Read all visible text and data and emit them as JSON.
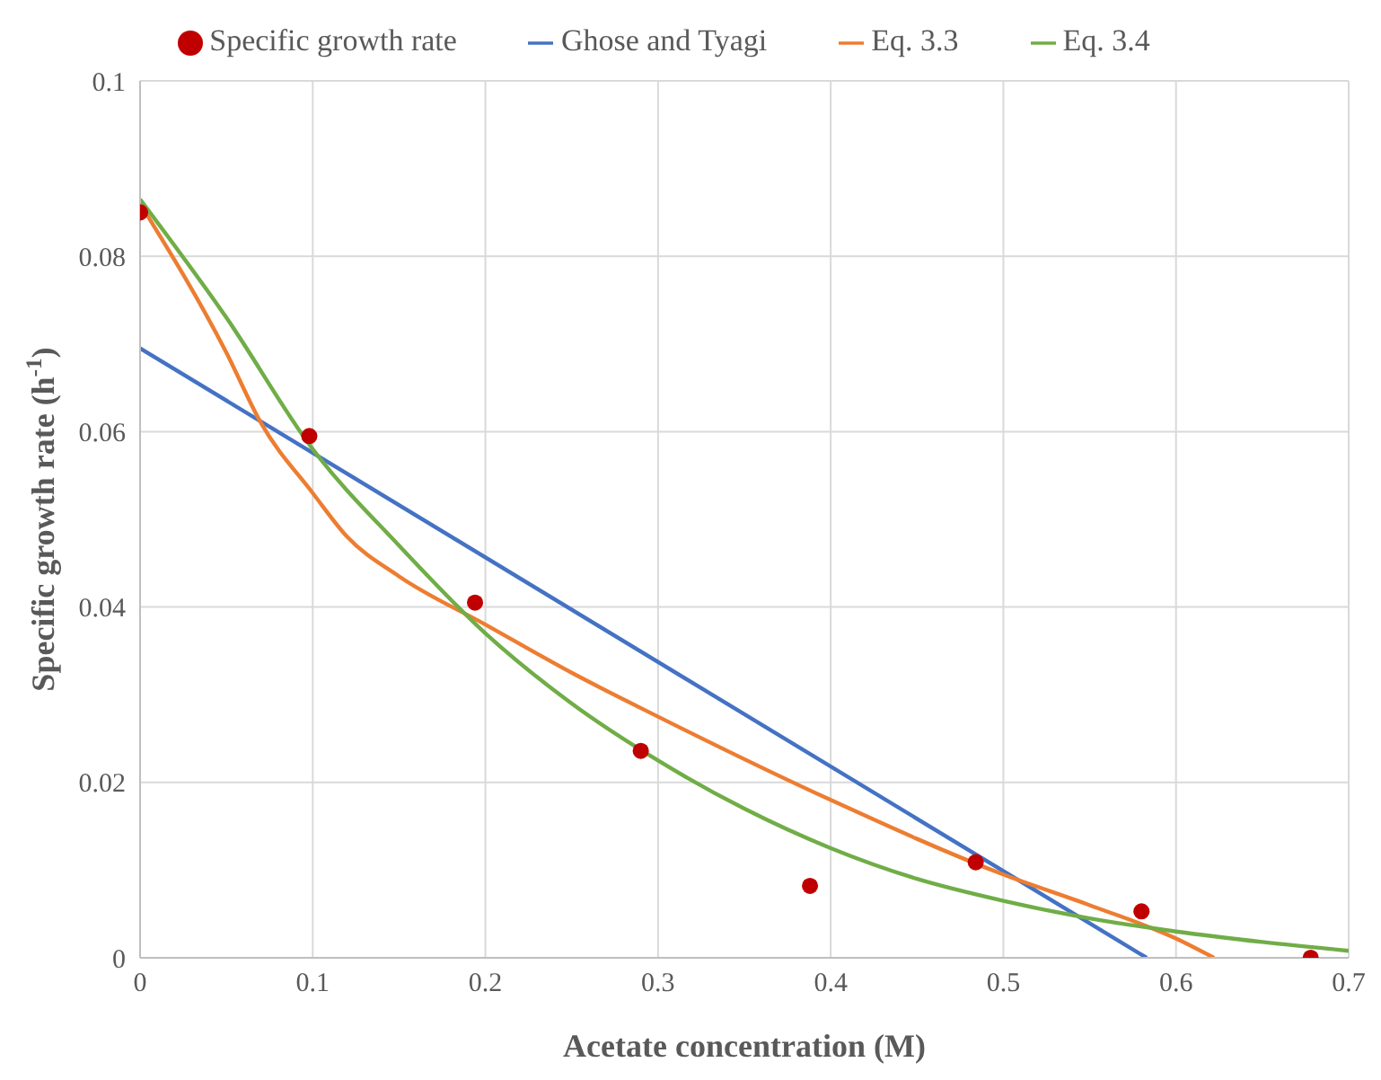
{
  "chart_data": {
    "type": "line",
    "xlabel": "Acetate concentration (M)",
    "ylabel": "Specific growth rate (h$^{-1}$)",
    "xlim": [
      0,
      0.7
    ],
    "xticks": [
      0,
      0.1,
      0.2,
      0.3,
      0.4,
      0.5,
      0.6,
      0.7
    ],
    "ylim": [
      0,
      0.1
    ],
    "yticks": [
      0,
      0.02,
      0.04,
      0.06,
      0.08,
      0.1
    ],
    "grid": true,
    "legend": "top",
    "series": [
      {
        "name": "Specific growth rate",
        "type": "scatter",
        "marker": "circle",
        "color": "#c00000",
        "x": [
          0,
          0.098,
          0.194,
          0.29,
          0.388,
          0.484,
          0.58,
          0.678
        ],
        "values": [
          0.085,
          0.0595,
          0.0405,
          0.0236,
          0.0082,
          0.0109,
          0.0053,
          0
        ]
      },
      {
        "name": "Ghose and Tyagi",
        "color": "#4472c4",
        "x": [
          0,
          0.583
        ],
        "values": [
          0.0695,
          0
        ]
      },
      {
        "name": "Eq. 3.3",
        "color": "#ed7d31",
        "x": [
          0,
          0.05,
          0.07,
          0.1,
          0.12,
          0.15,
          0.2,
          0.25,
          0.3,
          0.4,
          0.5,
          0.55,
          0.6,
          0.622
        ],
        "values": [
          0.086,
          0.069,
          0.061,
          0.053,
          0.048,
          0.0435,
          0.038,
          0.0325,
          0.0275,
          0.018,
          0.0095,
          0.006,
          0.0022,
          0
        ]
      },
      {
        "name": "Eq. 3.4",
        "color": "#70ad47",
        "x": [
          0,
          0.05,
          0.1,
          0.15,
          0.2,
          0.25,
          0.3,
          0.35,
          0.4,
          0.45,
          0.5,
          0.55,
          0.6,
          0.65,
          0.7
        ],
        "values": [
          0.0865,
          0.073,
          0.058,
          0.047,
          0.037,
          0.029,
          0.0225,
          0.017,
          0.0125,
          0.009,
          0.0065,
          0.0045,
          0.003,
          0.0018,
          0.0008
        ]
      }
    ]
  }
}
